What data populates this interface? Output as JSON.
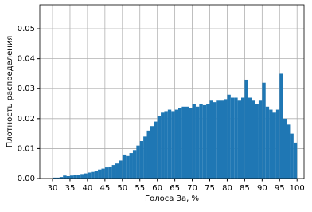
{
  "chart_data": {
    "type": "histogram",
    "xlabel": "Голоса За, %",
    "ylabel": "Плотность распределения",
    "color": "#1f77b4",
    "grid": true,
    "xlim": [
      26.35,
      102.0
    ],
    "ylim": [
      0,
      0.058
    ],
    "xticks": [
      30,
      35,
      40,
      45,
      50,
      55,
      60,
      65,
      70,
      75,
      80,
      85,
      90,
      95,
      100
    ],
    "yticks": [
      {
        "value": 0,
        "label": "0.00"
      },
      {
        "value": 0.01,
        "label": "0.01"
      },
      {
        "value": 0.02,
        "label": "0.02"
      },
      {
        "value": 0.03,
        "label": "0.03"
      },
      {
        "value": 0.04,
        "label": "0.04"
      },
      {
        "value": 0.05,
        "label": "0.05"
      }
    ],
    "bins": [
      30,
      31,
      32,
      33,
      34,
      35,
      36,
      37,
      38,
      39,
      40,
      41,
      42,
      43,
      44,
      45,
      46,
      47,
      48,
      49,
      50,
      51,
      52,
      53,
      54,
      55,
      56,
      57,
      58,
      59,
      60,
      61,
      62,
      63,
      64,
      65,
      66,
      67,
      68,
      69,
      70,
      71,
      72,
      73,
      74,
      75,
      76,
      77,
      78,
      79,
      80,
      81,
      82,
      83,
      84,
      85,
      86,
      87,
      88,
      89,
      90,
      91,
      92,
      93,
      94,
      95,
      96,
      97,
      98,
      99,
      100
    ],
    "values": [
      0.0003,
      0.0003,
      0.0005,
      0.001,
      0.0008,
      0.001,
      0.0012,
      0.0013,
      0.0015,
      0.0017,
      0.002,
      0.0022,
      0.0025,
      0.003,
      0.0033,
      0.0037,
      0.004,
      0.0045,
      0.005,
      0.006,
      0.008,
      0.0075,
      0.0085,
      0.0095,
      0.011,
      0.0125,
      0.014,
      0.016,
      0.0175,
      0.019,
      0.021,
      0.022,
      0.0225,
      0.023,
      0.0225,
      0.023,
      0.0235,
      0.024,
      0.024,
      0.0235,
      0.025,
      0.024,
      0.025,
      0.0245,
      0.025,
      0.026,
      0.0255,
      0.026,
      0.026,
      0.0265,
      0.028,
      0.027,
      0.027,
      0.026,
      0.027,
      0.033,
      0.027,
      0.026,
      0.025,
      0.026,
      0.032,
      0.024,
      0.023,
      0.022,
      0.023,
      0.035,
      0.02,
      0.018,
      0.015,
      0.012
    ]
  }
}
